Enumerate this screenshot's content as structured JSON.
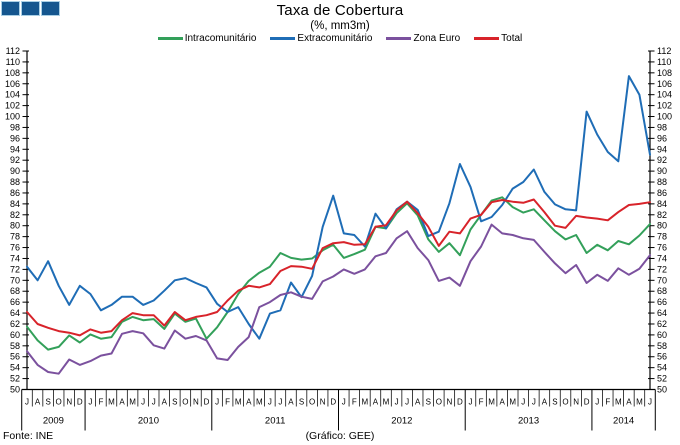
{
  "header": {
    "title": "Taxa de Cobertura",
    "subtitle": "(%, mm3m)"
  },
  "logo": {
    "square_count": 3,
    "fill": "#15568f",
    "border": "#a9cfe5"
  },
  "footer": {
    "source": "Fonte: INE",
    "credit": "(Gráfico: GEE)"
  },
  "chart_data": {
    "type": "line",
    "title": "Taxa de Cobertura",
    "subtitle": "(%, mm3m)",
    "ylim": [
      50,
      112
    ],
    "ytick_step": 2,
    "grid": false,
    "legend_position": "top-center",
    "axis_color": "#000000",
    "x_months": [
      "J",
      "A",
      "S",
      "O",
      "N",
      "D",
      "J",
      "F",
      "M",
      "A",
      "M",
      "J",
      "J",
      "A",
      "S",
      "O",
      "N",
      "D",
      "J",
      "F",
      "M",
      "A",
      "M",
      "J",
      "J",
      "A",
      "S",
      "O",
      "N",
      "D",
      "J",
      "F",
      "M",
      "A",
      "M",
      "J",
      "J",
      "A",
      "S",
      "O",
      "N",
      "D",
      "J",
      "F",
      "M",
      "A",
      "M",
      "J",
      "J",
      "A",
      "S",
      "O",
      "N",
      "D",
      "J",
      "F",
      "M",
      "A",
      "M",
      "J"
    ],
    "x_years": [
      {
        "label": "2009",
        "months": 6
      },
      {
        "label": "2010",
        "months": 12
      },
      {
        "label": "2011",
        "months": 12
      },
      {
        "label": "2012",
        "months": 12
      },
      {
        "label": "2013",
        "months": 12
      },
      {
        "label": "2014",
        "months": 6
      }
    ],
    "series": [
      {
        "name": "Intracomunitário",
        "color": "#33a05a",
        "values": [
          61.5,
          59.0,
          57.3,
          57.8,
          59.9,
          58.6,
          60.1,
          59.3,
          59.6,
          62.4,
          63.3,
          62.7,
          62.9,
          61.1,
          63.9,
          62.4,
          63.0,
          59.3,
          61.4,
          64.2,
          67.5,
          69.9,
          71.4,
          72.5,
          75.0,
          74.1,
          73.8,
          74.0,
          75.5,
          76.5,
          74.1,
          74.8,
          75.6,
          79.8,
          79.5,
          82.3,
          84.1,
          81.9,
          77.5,
          75.2,
          76.8,
          74.6,
          79.3,
          82.0,
          84.6,
          85.2,
          83.4,
          82.4,
          83.0,
          81.0,
          79.0,
          77.5,
          78.3,
          75.0,
          76.5,
          75.5,
          77.2,
          76.6,
          78.2,
          80.3
        ]
      },
      {
        "name": "Extracomunitário",
        "color": "#1f6db6",
        "values": [
          72.5,
          70.0,
          73.5,
          69.0,
          65.5,
          69.0,
          67.5,
          64.5,
          65.5,
          67.0,
          67.0,
          65.5,
          66.3,
          68.1,
          70.0,
          70.4,
          69.5,
          68.7,
          65.7,
          64.2,
          65.1,
          62.0,
          59.3,
          63.9,
          64.5,
          69.6,
          66.9,
          70.8,
          79.8,
          85.5,
          78.6,
          78.3,
          76.2,
          82.2,
          79.5,
          83.0,
          84.4,
          82.9,
          78.1,
          78.9,
          84.1,
          91.3,
          87.1,
          80.8,
          81.6,
          83.8,
          86.8,
          88.0,
          90.3,
          86.2,
          83.9,
          83.0,
          82.8,
          100.9,
          96.7,
          93.5,
          91.8,
          107.4,
          104.0,
          93.0
        ]
      },
      {
        "name": "Zona Euro",
        "color": "#7b519e",
        "values": [
          57.0,
          54.5,
          53.2,
          52.9,
          55.5,
          54.5,
          55.2,
          56.2,
          56.6,
          60.2,
          60.7,
          60.3,
          58.1,
          57.5,
          60.8,
          59.3,
          59.8,
          59.0,
          55.7,
          55.4,
          57.8,
          59.6,
          65.1,
          66.0,
          67.3,
          67.8,
          67.0,
          66.6,
          69.8,
          70.7,
          72.0,
          71.2,
          72.0,
          74.4,
          75.0,
          77.7,
          79.0,
          75.9,
          73.7,
          69.9,
          70.5,
          69.0,
          73.5,
          76.2,
          80.2,
          78.6,
          78.3,
          77.7,
          77.4,
          75.2,
          73.1,
          71.3,
          72.8,
          69.5,
          71.0,
          69.9,
          72.2,
          71.0,
          72.1,
          74.6
        ]
      },
      {
        "name": "Total",
        "color": "#d8232a",
        "values": [
          64.2,
          62.0,
          61.3,
          60.7,
          60.4,
          59.9,
          61.0,
          60.4,
          60.7,
          62.7,
          64.0,
          63.6,
          63.6,
          61.7,
          64.2,
          62.7,
          63.3,
          63.6,
          64.2,
          66.3,
          68.1,
          69.0,
          68.7,
          69.3,
          71.7,
          72.6,
          72.5,
          72.1,
          75.9,
          76.8,
          77.0,
          76.5,
          76.6,
          79.8,
          80.1,
          82.8,
          84.4,
          82.3,
          79.8,
          76.3,
          78.9,
          78.6,
          81.3,
          82.0,
          84.3,
          84.7,
          84.4,
          84.2,
          84.8,
          82.5,
          80.0,
          79.6,
          81.8,
          81.5,
          81.3,
          81.0,
          82.5,
          83.8,
          84.0,
          84.3
        ]
      }
    ]
  }
}
